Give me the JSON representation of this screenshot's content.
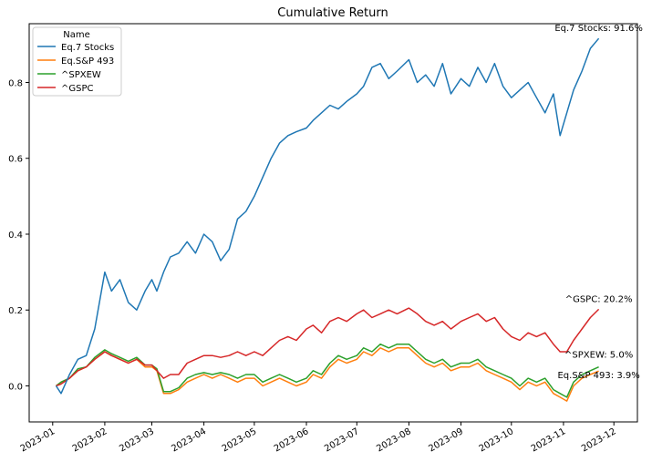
{
  "chart_data": {
    "type": "line",
    "title": "Cumulative Return",
    "xlabel": "",
    "ylabel": "",
    "ylim": [
      -0.095,
      0.955
    ],
    "yticks": [
      0.0,
      0.2,
      0.4,
      0.6,
      0.8
    ],
    "ytick_labels": [
      "0.0",
      "0.2",
      "0.4",
      "0.6",
      "0.8"
    ],
    "xlim_days": [
      -14,
      348
    ],
    "xticks_days": [
      0,
      31,
      59,
      90,
      120,
      151,
      181,
      212,
      243,
      273,
      304,
      334
    ],
    "xtick_labels": [
      "2023-01",
      "2023-02",
      "2023-03",
      "2023-04",
      "2023-05",
      "2023-06",
      "2023-07",
      "2023-08",
      "2023-09",
      "2023-10",
      "2023-11",
      "2023-12"
    ],
    "x_days": [
      2,
      5,
      10,
      15,
      20,
      25,
      31,
      35,
      40,
      45,
      50,
      55,
      59,
      62,
      66,
      70,
      75,
      80,
      85,
      90,
      95,
      100,
      105,
      110,
      115,
      120,
      125,
      130,
      135,
      140,
      145,
      151,
      155,
      160,
      165,
      170,
      175,
      181,
      185,
      190,
      195,
      200,
      205,
      212,
      217,
      222,
      227,
      232,
      237,
      243,
      248,
      253,
      258,
      263,
      268,
      273,
      278,
      283,
      288,
      293,
      298,
      302,
      306,
      310,
      315,
      320,
      325
    ],
    "legend": {
      "title": "Name",
      "location": "upper-left",
      "entries": [
        "Eq.7 Stocks",
        "Eq.S&P 493",
        "^SPXEW",
        "^GSPC"
      ]
    },
    "series": [
      {
        "name": "Eq.7 Stocks",
        "color": "#1f77b4",
        "label": "Eq.7 Stocks: 91.6%",
        "values": [
          0.0,
          -0.02,
          0.03,
          0.07,
          0.08,
          0.15,
          0.3,
          0.25,
          0.28,
          0.22,
          0.2,
          0.25,
          0.28,
          0.25,
          0.3,
          0.34,
          0.35,
          0.38,
          0.35,
          0.4,
          0.38,
          0.33,
          0.36,
          0.44,
          0.46,
          0.5,
          0.55,
          0.6,
          0.64,
          0.66,
          0.67,
          0.68,
          0.7,
          0.72,
          0.74,
          0.73,
          0.75,
          0.77,
          0.79,
          0.84,
          0.85,
          0.81,
          0.83,
          0.86,
          0.8,
          0.82,
          0.79,
          0.85,
          0.77,
          0.81,
          0.79,
          0.84,
          0.8,
          0.85,
          0.79,
          0.76,
          0.78,
          0.8,
          0.76,
          0.72,
          0.77,
          0.66,
          0.72,
          0.78,
          0.83,
          0.89,
          0.916
        ]
      },
      {
        "name": "Eq.S&P 493",
        "color": "#ff7f0e",
        "label": "Eq.S&P 493: 3.9%",
        "values": [
          0.0,
          0.01,
          0.02,
          0.04,
          0.05,
          0.07,
          0.09,
          0.08,
          0.07,
          0.06,
          0.07,
          0.05,
          0.05,
          0.04,
          -0.02,
          -0.02,
          -0.01,
          0.01,
          0.02,
          0.03,
          0.02,
          0.03,
          0.02,
          0.01,
          0.02,
          0.02,
          0.0,
          0.01,
          0.02,
          0.01,
          0.0,
          0.01,
          0.03,
          0.02,
          0.05,
          0.07,
          0.06,
          0.07,
          0.09,
          0.08,
          0.1,
          0.09,
          0.1,
          0.1,
          0.08,
          0.06,
          0.05,
          0.06,
          0.04,
          0.05,
          0.05,
          0.06,
          0.04,
          0.03,
          0.02,
          0.01,
          -0.01,
          0.01,
          0.0,
          0.01,
          -0.02,
          -0.03,
          -0.04,
          0.0,
          0.02,
          0.03,
          0.039
        ]
      },
      {
        "name": "^SPXEW",
        "color": "#2ca02c",
        "label": "^SPXEW: 5.0%",
        "values": [
          0.0,
          0.01,
          0.02,
          0.045,
          0.05,
          0.075,
          0.095,
          0.085,
          0.075,
          0.065,
          0.075,
          0.055,
          0.055,
          0.045,
          -0.015,
          -0.015,
          -0.005,
          0.02,
          0.03,
          0.035,
          0.03,
          0.035,
          0.03,
          0.02,
          0.03,
          0.03,
          0.01,
          0.02,
          0.03,
          0.02,
          0.01,
          0.02,
          0.04,
          0.03,
          0.06,
          0.08,
          0.07,
          0.08,
          0.1,
          0.09,
          0.11,
          0.1,
          0.11,
          0.11,
          0.09,
          0.07,
          0.06,
          0.07,
          0.05,
          0.06,
          0.06,
          0.07,
          0.05,
          0.04,
          0.03,
          0.02,
          0.0,
          0.02,
          0.01,
          0.02,
          -0.01,
          -0.02,
          -0.03,
          0.01,
          0.03,
          0.04,
          0.05
        ]
      },
      {
        "name": "^GSPC",
        "color": "#d62728",
        "label": "^GSPC: 20.2%",
        "values": [
          0.0,
          0.005,
          0.02,
          0.04,
          0.05,
          0.07,
          0.09,
          0.08,
          0.07,
          0.06,
          0.07,
          0.055,
          0.055,
          0.04,
          0.02,
          0.03,
          0.03,
          0.06,
          0.07,
          0.08,
          0.08,
          0.075,
          0.08,
          0.09,
          0.08,
          0.09,
          0.08,
          0.1,
          0.12,
          0.13,
          0.12,
          0.15,
          0.16,
          0.14,
          0.17,
          0.18,
          0.17,
          0.19,
          0.2,
          0.18,
          0.19,
          0.2,
          0.19,
          0.205,
          0.19,
          0.17,
          0.16,
          0.17,
          0.15,
          0.17,
          0.18,
          0.19,
          0.17,
          0.18,
          0.15,
          0.13,
          0.12,
          0.14,
          0.13,
          0.14,
          0.11,
          0.09,
          0.09,
          0.12,
          0.15,
          0.18,
          0.202
        ]
      }
    ]
  }
}
